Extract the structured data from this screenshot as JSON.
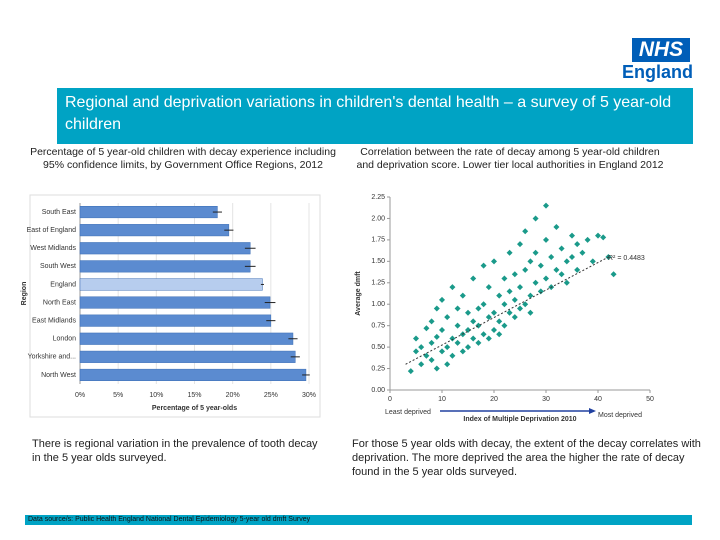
{
  "logo": {
    "nhs": "NHS",
    "england": "England"
  },
  "header": {
    "title": "Regional and deprivation variations in children's dental health – a survey of 5 year-old children"
  },
  "left_text": "There is regional variation in the prevalence of tooth decay in the 5 year olds surveyed.",
  "right_text": "For those 5 year olds with decay, the extent of the decay correlates with deprivation. The more deprived the area the higher the rate of decay found in the 5 year olds surveyed.",
  "footer": "Data source/s: Public Health England National Dental Epidemiology 5-year old dmft Survey",
  "chart_data": [
    {
      "type": "hbar",
      "title": "Percentage of 5 year-old children with decay experience including 95% confidence limits, by Government Office Regions, 2012",
      "categories": [
        "South East",
        "East of England",
        "West Midlands",
        "South West",
        "England",
        "North East",
        "East Midlands",
        "London",
        "Yorkshire and...",
        "North West"
      ],
      "values": [
        18,
        19.5,
        22.3,
        22.3,
        23.9,
        24.9,
        25,
        27.9,
        28.2,
        29.6
      ],
      "errors": [
        0.6,
        0.6,
        0.7,
        0.7,
        0.2,
        0.7,
        0.6,
        0.6,
        0.6,
        0.5
      ],
      "colors": [
        "#5b8bd0",
        "#5b8bd0",
        "#5b8bd0",
        "#5b8bd0",
        "#b7cdee",
        "#5b8bd0",
        "#5b8bd0",
        "#5b8bd0",
        "#5b8bd0",
        "#5b8bd0"
      ],
      "xlim": [
        0,
        30
      ],
      "xticks": [
        {
          "value": 0,
          "label": "0%"
        },
        {
          "value": 5,
          "label": "5%"
        },
        {
          "value": 10,
          "label": "10%"
        },
        {
          "value": 15,
          "label": "15%"
        },
        {
          "value": 20,
          "label": "20%"
        },
        {
          "value": 25,
          "label": "25%"
        },
        {
          "value": 30,
          "label": "30%"
        }
      ],
      "xlabel": "Percentage of 5 year-olds",
      "ylabel": "Region"
    },
    {
      "type": "scatter",
      "title": "Correlation between the rate of decay among 5 year-old children and deprivation score. Lower tier local authorities in England 2012",
      "color": "#1a9a8a",
      "x": [
        4,
        5,
        5,
        6,
        6,
        7,
        7,
        8,
        8,
        8,
        9,
        9,
        9,
        10,
        10,
        10,
        11,
        11,
        11,
        12,
        12,
        12,
        13,
        13,
        13,
        14,
        14,
        14,
        15,
        15,
        15,
        16,
        16,
        16,
        17,
        17,
        17,
        18,
        18,
        18,
        19,
        19,
        19,
        20,
        20,
        20,
        21,
        21,
        21,
        22,
        22,
        22,
        23,
        23,
        23,
        24,
        24,
        24,
        25,
        25,
        25,
        26,
        26,
        26,
        27,
        27,
        27,
        28,
        28,
        28,
        29,
        29,
        30,
        30,
        30,
        31,
        31,
        32,
        32,
        33,
        33,
        34,
        34,
        35,
        35,
        36,
        36,
        37,
        38,
        39,
        40,
        41,
        42,
        43
      ],
      "y": [
        0.22,
        0.45,
        0.6,
        0.3,
        0.5,
        0.72,
        0.4,
        0.35,
        0.55,
        0.8,
        0.25,
        0.62,
        0.95,
        0.45,
        0.7,
        1.05,
        0.5,
        0.3,
        0.85,
        0.6,
        0.4,
        1.2,
        0.55,
        0.75,
        0.95,
        0.45,
        0.65,
        1.1,
        0.7,
        0.5,
        0.9,
        0.8,
        0.6,
        1.3,
        0.55,
        0.95,
        0.75,
        0.65,
        1.0,
        1.45,
        0.85,
        0.6,
        1.2,
        0.9,
        0.7,
        1.5,
        0.8,
        1.1,
        0.65,
        1.0,
        1.3,
        0.75,
        0.9,
        1.6,
        1.15,
        1.05,
        0.85,
        1.35,
        1.2,
        1.7,
        0.95,
        1.0,
        1.4,
        1.85,
        1.1,
        1.5,
        0.9,
        1.25,
        1.6,
        2.0,
        1.15,
        1.45,
        1.3,
        1.75,
        2.15,
        1.2,
        1.55,
        1.4,
        1.9,
        1.35,
        1.65,
        1.5,
        1.25,
        1.55,
        1.8,
        1.4,
        1.7,
        1.6,
        1.75,
        1.5,
        1.8,
        1.78,
        1.55,
        1.35
      ],
      "trendline": {
        "x": [
          3,
          42
        ],
        "y": [
          0.3,
          1.55
        ]
      },
      "annotation": "R² = 0.4483",
      "xlim": [
        0,
        50
      ],
      "xticks": [
        0,
        10,
        20,
        30,
        40,
        50
      ],
      "ylim": [
        0,
        2.25
      ],
      "yticks": [
        {
          "value": 0,
          "label": "0.00"
        },
        {
          "value": 0.25,
          "label": "0.25"
        },
        {
          "value": 0.5,
          "label": "0.50"
        },
        {
          "value": 0.75,
          "label": "0.75"
        },
        {
          "value": 1,
          "label": "1.00"
        },
        {
          "value": 1.25,
          "label": "1.25"
        },
        {
          "value": 1.5,
          "label": "1.50"
        },
        {
          "value": 1.75,
          "label": "1.75"
        },
        {
          "value": 2,
          "label": "2.00"
        },
        {
          "value": 2.25,
          "label": "2.25"
        }
      ],
      "xlabel": "Index of Multiple Deprivation 2010",
      "ylabel": "Average dmft",
      "x_low_label": "Least deprived",
      "x_high_label": "Most deprived"
    }
  ]
}
